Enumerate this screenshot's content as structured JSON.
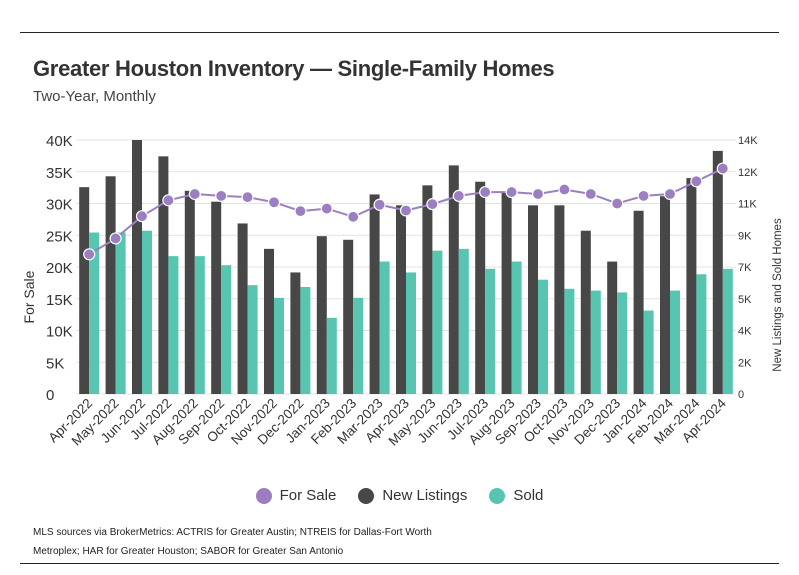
{
  "title": "Greater Houston Inventory — Single-Family Homes",
  "subtitle": "Two-Year, Monthly",
  "source_note": "MLS sources via BrokerMetrics: ACTRIS for Greater Austin; NTREIS for Dallas-Fort Worth Metroplex; HAR for Greater Houston; SABOR for Greater San Antonio",
  "colors": {
    "for_sale": "#9b7fc0",
    "new_listings": "#474747",
    "sold": "#57c5b0"
  },
  "chart_data": {
    "type": "bar",
    "categories": [
      "Apr-2022",
      "May-2022",
      "Jun-2022",
      "Jul-2022",
      "Aug-2022",
      "Sep-2022",
      "Oct-2022",
      "Nov-2022",
      "Dec-2022",
      "Jan-2023",
      "Feb-2023",
      "Mar-2023",
      "Apr-2023",
      "May-2023",
      "Jun-2023",
      "Jul-2023",
      "Aug-2023",
      "Sep-2023",
      "Oct-2023",
      "Nov-2023",
      "Dec-2023",
      "Jan-2024",
      "Feb-2024",
      "Mar-2024",
      "Apr-2024"
    ],
    "ylabel": "For Sale",
    "y2label": "New Listings and Sold Homes",
    "ylim": [
      0,
      40000
    ],
    "y2lim": [
      0,
      14000
    ],
    "yticks": [
      "0",
      "5K",
      "10K",
      "15K",
      "20K",
      "25K",
      "30K",
      "35K",
      "40K"
    ],
    "y2ticks": [
      "0",
      "2K",
      "4K",
      "5K",
      "7K",
      "9K",
      "11K",
      "12K",
      "14K"
    ],
    "legend_position": "bottom",
    "series": [
      {
        "name": "For Sale",
        "type": "line",
        "axis": "left",
        "values": [
          22000,
          24500,
          28000,
          30500,
          31500,
          31200,
          31000,
          30200,
          28800,
          29200,
          27900,
          29800,
          28900,
          29900,
          31200,
          31800,
          31800,
          31500,
          32200,
          31500,
          30000,
          31200,
          31500,
          33500,
          35500
        ]
      },
      {
        "name": "New Listings",
        "type": "bar",
        "axis": "right",
        "values": [
          11400,
          12000,
          14000,
          13100,
          11200,
          10600,
          9400,
          8000,
          6700,
          8700,
          8500,
          11000,
          10400,
          11500,
          12600,
          11700,
          11100,
          10400,
          10400,
          9000,
          7300,
          10100,
          10900,
          11900,
          13400
        ]
      },
      {
        "name": "Sold",
        "type": "bar",
        "axis": "right",
        "values": [
          8900,
          8900,
          9000,
          7600,
          7600,
          7100,
          6000,
          5300,
          5900,
          4200,
          5300,
          7300,
          6700,
          7900,
          8000,
          6900,
          7300,
          6300,
          5800,
          5700,
          5600,
          4600,
          5700,
          6600,
          6900
        ]
      }
    ]
  }
}
